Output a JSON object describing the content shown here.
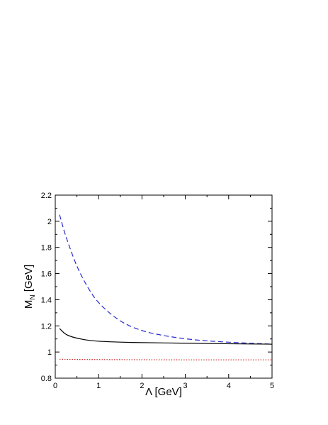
{
  "chart_data": {
    "type": "line",
    "title": "",
    "xlabel": "Λ [GeV]",
    "ylabel": "M_N [GeV]",
    "ylabel_main": "M",
    "ylabel_sub": "N",
    "ylabel_unit": " [GeV]",
    "xlim": [
      0,
      5
    ],
    "ylim": [
      0.8,
      2.2
    ],
    "xticks": [
      0,
      1,
      2,
      3,
      4,
      5
    ],
    "yticks": [
      0.8,
      1,
      1.2,
      1.4,
      1.6,
      1.8,
      2,
      2.2
    ],
    "grid": false,
    "legend": "none",
    "series": [
      {
        "style": "dashed",
        "color": "#2a2ad0",
        "x": [
          0.1,
          0.2,
          0.3,
          0.5,
          0.75,
          1.0,
          1.5,
          2.0,
          2.5,
          3.0,
          3.5,
          4.0,
          4.5,
          5.0
        ],
        "y": [
          2.05,
          1.93,
          1.83,
          1.65,
          1.49,
          1.37,
          1.23,
          1.16,
          1.125,
          1.1,
          1.085,
          1.075,
          1.067,
          1.06
        ]
      },
      {
        "style": "solid",
        "color": "#000000",
        "x": [
          0.1,
          0.2,
          0.3,
          0.5,
          0.75,
          1.0,
          1.5,
          2.0,
          3.0,
          4.0,
          5.0
        ],
        "y": [
          1.18,
          1.145,
          1.125,
          1.105,
          1.09,
          1.082,
          1.075,
          1.072,
          1.067,
          1.063,
          1.06
        ]
      },
      {
        "style": "dotted",
        "color": "#cc2222",
        "x": [
          0.1,
          0.5,
          1.0,
          2.0,
          3.0,
          4.0,
          5.0
        ],
        "y": [
          0.945,
          0.943,
          0.942,
          0.941,
          0.94,
          0.94,
          0.94
        ]
      }
    ]
  }
}
